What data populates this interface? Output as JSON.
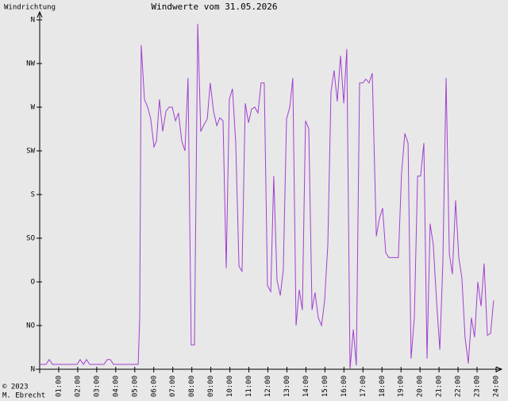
{
  "chart_data": {
    "type": "line",
    "title": "Windwerte vom 31.05.2026",
    "ylabel": "Windrichtung",
    "footer": [
      "© 2023",
      "M. Ebrecht"
    ],
    "xlim": [
      0,
      24
    ],
    "ylim": [
      0,
      360
    ],
    "xticks": [
      {
        "value": 1,
        "label": "01:00"
      },
      {
        "value": 2,
        "label": "02:00"
      },
      {
        "value": 3,
        "label": "03:00"
      },
      {
        "value": 4,
        "label": "04:00"
      },
      {
        "value": 5,
        "label": "05:00"
      },
      {
        "value": 6,
        "label": "06:00"
      },
      {
        "value": 7,
        "label": "07:00"
      },
      {
        "value": 8,
        "label": "08:00"
      },
      {
        "value": 9,
        "label": "09:00"
      },
      {
        "value": 10,
        "label": "10:00"
      },
      {
        "value": 11,
        "label": "11:00"
      },
      {
        "value": 12,
        "label": "12:00"
      },
      {
        "value": 13,
        "label": "13:00"
      },
      {
        "value": 14,
        "label": "14:00"
      },
      {
        "value": 15,
        "label": "15:00"
      },
      {
        "value": 16,
        "label": "16:00"
      },
      {
        "value": 17,
        "label": "17:00"
      },
      {
        "value": 18,
        "label": "18:00"
      },
      {
        "value": 19,
        "label": "19:00"
      },
      {
        "value": 20,
        "label": "20:00"
      },
      {
        "value": 21,
        "label": "21:00"
      },
      {
        "value": 22,
        "label": "22:00"
      },
      {
        "value": 23,
        "label": "23:00"
      },
      {
        "value": 24,
        "label": "24:00"
      }
    ],
    "yticks": [
      {
        "value": 0,
        "label": "N"
      },
      {
        "value": 45,
        "label": "NO"
      },
      {
        "value": 90,
        "label": "O"
      },
      {
        "value": 135,
        "label": "SO"
      },
      {
        "value": 180,
        "label": "S"
      },
      {
        "value": 225,
        "label": "SW"
      },
      {
        "value": 270,
        "label": "W"
      },
      {
        "value": 315,
        "label": "NW"
      },
      {
        "value": 360,
        "label": "N"
      }
    ],
    "color": "#a040d0",
    "x": [
      0,
      0.33,
      0.5,
      0.67,
      1.96,
      2.13,
      2.3,
      2.46,
      2.63,
      3.38,
      3.55,
      3.71,
      3.88,
      5.18,
      5.26,
      5.34,
      5.51,
      5.68,
      5.84,
      6.01,
      6.14,
      6.3,
      6.47,
      6.64,
      6.8,
      6.97,
      7.14,
      7.3,
      7.47,
      7.64,
      7.8,
      7.97,
      8.14,
      8.31,
      8.47,
      8.64,
      8.81,
      8.97,
      9.14,
      9.31,
      9.47,
      9.64,
      9.81,
      9.97,
      10.14,
      10.31,
      10.48,
      10.64,
      10.81,
      10.98,
      11.14,
      11.31,
      11.48,
      11.64,
      11.81,
      11.98,
      12.15,
      12.31,
      12.48,
      12.65,
      12.81,
      12.98,
      13.15,
      13.31,
      13.48,
      13.65,
      13.81,
      13.98,
      14.15,
      14.32,
      14.48,
      14.65,
      14.82,
      14.98,
      15.15,
      15.32,
      15.48,
      15.65,
      15.82,
      15.99,
      16.15,
      16.32,
      16.49,
      16.65,
      16.82,
      16.99,
      17.15,
      17.32,
      17.49,
      17.7,
      17.86,
      18.03,
      18.2,
      18.36,
      18.53,
      18.7,
      18.86,
      19.03,
      19.2,
      19.37,
      19.53,
      19.7,
      19.87,
      20.03,
      20.2,
      20.37,
      20.53,
      20.7,
      20.87,
      21.04,
      21.2,
      21.37,
      21.54,
      21.7,
      21.87,
      22.04,
      22.2,
      22.37,
      22.54,
      22.7,
      22.87,
      23.04,
      23.21,
      23.37,
      23.54,
      23.71,
      23.87
    ],
    "values": [
      5,
      5,
      10,
      5,
      5,
      10,
      5,
      10,
      5,
      5,
      10,
      10,
      5,
      5,
      53,
      334,
      278,
      270,
      258,
      229,
      235,
      278,
      245,
      266,
      270,
      270,
      256,
      264,
      235,
      225,
      300,
      25,
      25,
      356,
      245,
      252,
      258,
      295,
      266,
      251,
      259,
      256,
      104,
      278,
      289,
      233,
      106,
      101,
      274,
      254,
      268,
      270,
      264,
      295,
      295,
      86,
      80,
      199,
      92,
      76,
      102,
      258,
      270,
      300,
      45,
      82,
      61,
      256,
      248,
      61,
      79,
      53,
      45,
      70,
      128,
      286,
      308,
      276,
      323,
      274,
      330,
      0,
      41,
      4,
      295,
      295,
      299,
      295,
      305,
      137,
      155,
      166,
      120,
      115,
      115,
      115,
      115,
      202,
      243,
      233,
      11,
      53,
      199,
      199,
      233,
      11,
      150,
      128,
      70,
      20,
      109,
      300,
      119,
      98,
      174,
      115,
      94,
      33,
      6,
      53,
      33,
      90,
      65,
      109,
      35,
      37,
      71
    ]
  }
}
